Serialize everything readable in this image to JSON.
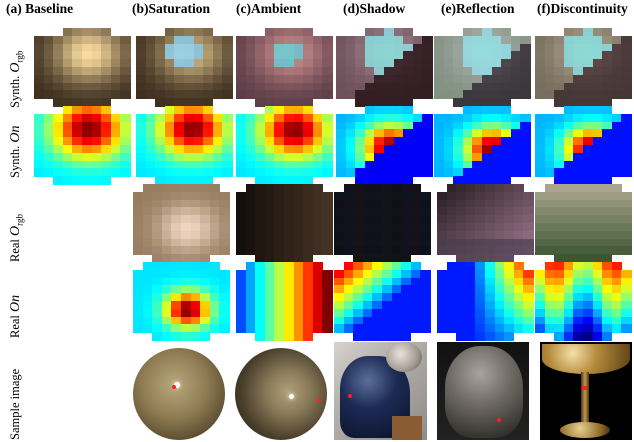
{
  "columns": [
    {
      "label": "(a) Baseline"
    },
    {
      "label": "(b)Saturation"
    },
    {
      "label": "(c)Ambient"
    },
    {
      "label": "(d)Shadow"
    },
    {
      "label": "(e)Reflection"
    },
    {
      "label": "(f)Discontinuity"
    }
  ],
  "rows": [
    {
      "prefix": "Synth.",
      "symbol": "O",
      "subscript": "rgb"
    },
    {
      "prefix": "Synth.",
      "symbol": "O",
      "subscript": "n"
    },
    {
      "prefix": "Real",
      "symbol": "O",
      "subscript": "rgb"
    },
    {
      "prefix": "Real",
      "symbol": "O",
      "subscript": "n"
    },
    {
      "prefix": "Sample image",
      "symbol": "",
      "subscript": ""
    }
  ],
  "colors": {
    "jet_low": "#1a1aff",
    "jet_high": "#b00000",
    "marker": "#ff2020"
  }
}
